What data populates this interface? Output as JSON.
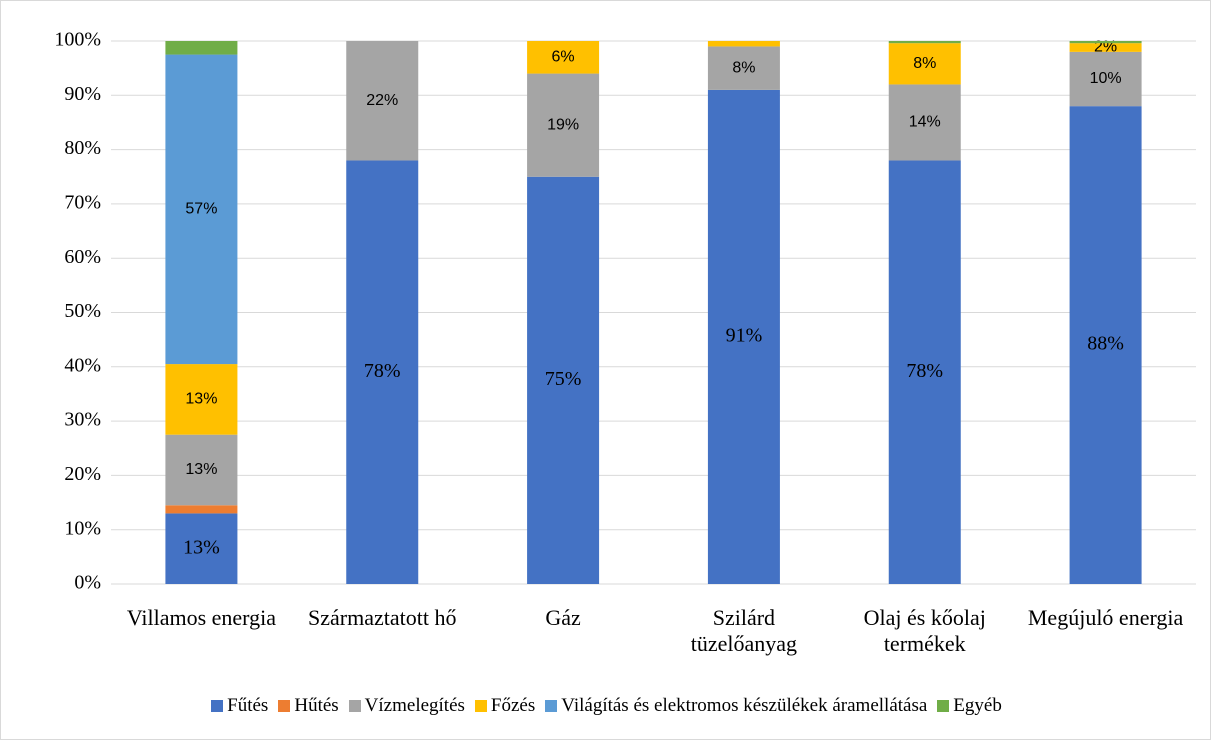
{
  "chart_data": {
    "type": "stacked_bar",
    "categories": [
      "Villamos energia",
      "Származtatott hő",
      "Gáz",
      "Szilárd tüzelőanyag",
      "Olaj és kőolaj termékek",
      "Megújuló energia"
    ],
    "series": [
      {
        "name": "Fűtés",
        "color": "#4472c4",
        "values": [
          13,
          78,
          75,
          91,
          78,
          88
        ],
        "value_labels": [
          "13%",
          "78%",
          "75%",
          "91%",
          "78%",
          "88%"
        ]
      },
      {
        "name": "Hűtés",
        "color": "#ed7d31",
        "values": [
          1.5,
          0,
          0,
          0,
          0,
          0
        ],
        "value_labels": [
          null,
          null,
          null,
          null,
          null,
          null
        ]
      },
      {
        "name": "Vízmelegítés",
        "color": "#a5a5a5",
        "values": [
          13,
          22,
          19,
          8,
          14,
          10
        ],
        "value_labels": [
          "13%",
          "22%",
          "19%",
          "8%",
          "14%",
          "10%"
        ]
      },
      {
        "name": "Főzés",
        "color": "#ffc000",
        "values": [
          13,
          0,
          6,
          1,
          7.6,
          1.6
        ],
        "value_labels": [
          "13%",
          null,
          "6%",
          null,
          "8%",
          "2%"
        ]
      },
      {
        "name": "Világítás és elektromos készülékek áramellátása",
        "color": "#5b9bd5",
        "values": [
          57,
          0,
          0,
          0,
          0,
          0
        ],
        "value_labels": [
          "57%",
          null,
          null,
          null,
          null,
          null
        ]
      },
      {
        "name": "Egyéb",
        "color": "#70ad47",
        "values": [
          2.5,
          0,
          0,
          0,
          0.4,
          0.4
        ],
        "value_labels": [
          null,
          null,
          null,
          null,
          null,
          null
        ]
      }
    ],
    "ylim": [
      0,
      100
    ],
    "yticks": [
      {
        "value": 0,
        "label": "0%"
      },
      {
        "value": 10,
        "label": "10%"
      },
      {
        "value": 20,
        "label": "20%"
      },
      {
        "value": 30,
        "label": "30%"
      },
      {
        "value": 40,
        "label": "40%"
      },
      {
        "value": 50,
        "label": "50%"
      },
      {
        "value": 60,
        "label": "60%"
      },
      {
        "value": 70,
        "label": "70%"
      },
      {
        "value": 80,
        "label": "80%"
      },
      {
        "value": 90,
        "label": "90%"
      },
      {
        "value": 100,
        "label": "100%"
      }
    ],
    "grid": true,
    "legend": "bottom"
  }
}
